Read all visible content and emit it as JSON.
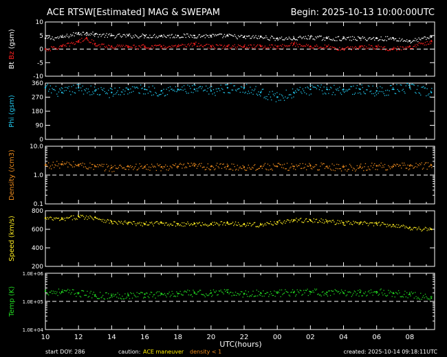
{
  "header": {
    "title": "ACE RTSW[Estimated] MAG & SWEPAM",
    "begin": "Begin: 2025-10-13 10:00:00UTC"
  },
  "footer": {
    "start": "start DOY: 286",
    "caution": "caution:",
    "maneuver": "ACE maneuver",
    "density_note": "density < 1",
    "created": "created: 2025-10-14 09:18:11UTC"
  },
  "colors": {
    "bt": "#ffffff",
    "bz": "#ff2020",
    "phi": "#22c8ee",
    "density": "#ee8c1e",
    "speed": "#ffee22",
    "temp": "#22dd22",
    "axes": "#ffffff",
    "maneuver": "#ffee00",
    "density_note": "#ee8c1e"
  },
  "chart_data": {
    "type": "scatter",
    "xlabel": "UTC(hours)",
    "x_ticks": [
      "10",
      "12",
      "14",
      "16",
      "18",
      "20",
      "22",
      "00",
      "02",
      "04",
      "06",
      "08"
    ],
    "x_range_hours": [
      10,
      33.5
    ],
    "panels": [
      {
        "id": "mag",
        "ylabel_parts": [
          {
            "text": "Bt",
            "series": "bt"
          },
          {
            "text": " Bz",
            "series": "bz"
          },
          {
            "text": " (gsm)",
            "series": "axes"
          }
        ],
        "ylim": [
          -10,
          10
        ],
        "yticks": [
          10,
          5,
          0,
          -5,
          -10
        ],
        "dashed_ref": 0,
        "series": [
          {
            "name": "Bt",
            "x": [
              10,
              11,
              12,
              12.5,
              13,
              14,
              15,
              16,
              17,
              18,
              19,
              20,
              21,
              22,
              23,
              24,
              25,
              26,
              27,
              28,
              29,
              30,
              31,
              32,
              33.3
            ],
            "y": [
              4,
              4.5,
              6,
              6,
              5.5,
              5,
              5,
              5,
              5,
              5,
              5,
              5,
              5,
              4.5,
              4.5,
              4,
              4,
              4.5,
              4,
              4,
              4,
              4,
              4,
              3,
              4.5
            ]
          },
          {
            "name": "Bz",
            "x": [
              10,
              11,
              12,
              12.5,
              13,
              14,
              15,
              16,
              17,
              18,
              19,
              20,
              21,
              22,
              23,
              24,
              25,
              26,
              27,
              28,
              29,
              30,
              31,
              32,
              33.3
            ],
            "y": [
              0,
              1,
              3,
              4,
              2,
              1,
              1,
              1,
              1,
              1,
              2,
              1,
              1,
              1,
              1,
              1,
              2,
              1,
              1,
              0,
              1,
              1,
              0,
              1,
              3
            ]
          }
        ]
      },
      {
        "id": "phi",
        "ylabel": "Phi (gsm)",
        "ylim": [
          0,
          360
        ],
        "yticks": [
          360,
          270,
          180,
          90,
          0
        ],
        "series": [
          {
            "name": "Phi",
            "x": [
              10,
              11,
              12,
              13,
              14,
              15,
              16,
              17,
              18,
              19,
              20,
              21,
              22,
              23,
              24,
              25,
              26,
              27,
              28,
              29,
              30,
              31,
              32,
              33.3
            ],
            "y": [
              330,
              300,
              330,
              310,
              300,
              320,
              320,
              310,
              320,
              320,
              310,
              330,
              330,
              300,
              270,
              300,
              320,
              320,
              320,
              320,
              310,
              320,
              330,
              300
            ]
          }
        ]
      },
      {
        "id": "density",
        "ylabel": "Density (/cm3)",
        "ylim": [
          0.1,
          10
        ],
        "scale": "log",
        "ytick_labels": [
          "10.0",
          "1.0",
          "0.1"
        ],
        "dashed_ref": 1,
        "series": [
          {
            "name": "Density",
            "x": [
              10,
              11,
              12,
              13,
              14,
              15,
              16,
              17,
              18,
              19,
              20,
              21,
              22,
              23,
              24,
              25,
              26,
              27,
              28,
              29,
              30,
              31,
              32,
              33.3
            ],
            "y": [
              2.2,
              2.4,
              2.3,
              2.0,
              1.8,
              2.0,
              1.9,
              1.9,
              2.0,
              2.1,
              2.0,
              2.0,
              1.9,
              2.0,
              2.0,
              2.0,
              2.1,
              2.0,
              1.9,
              1.9,
              2.1,
              2.0,
              2.1,
              2.2
            ]
          }
        ]
      },
      {
        "id": "speed",
        "ylabel": "Speed (km/s)",
        "ylim": [
          200,
          800
        ],
        "yticks": [
          800,
          600,
          400,
          200
        ],
        "series": [
          {
            "name": "Speed",
            "x": [
              10,
              11,
              12,
              13,
              14,
              15,
              16,
              17,
              18,
              19,
              20,
              21,
              22,
              23,
              24,
              25,
              26,
              27,
              28,
              29,
              30,
              31,
              32,
              33.3
            ],
            "y": [
              720,
              710,
              740,
              730,
              680,
              670,
              660,
              670,
              660,
              660,
              660,
              670,
              660,
              650,
              680,
              700,
              700,
              690,
              670,
              670,
              660,
              650,
              620,
              600
            ]
          }
        ]
      },
      {
        "id": "temp",
        "ylabel": "Temp (K)",
        "ylim": [
          10000,
          1000000
        ],
        "scale": "log",
        "ytick_labels": [
          "1.0E+06",
          "1.0E+05",
          "1.0E+04"
        ],
        "dashed_ref": 100000,
        "series": [
          {
            "name": "Temp",
            "x": [
              10,
              11,
              12,
              13,
              14,
              15,
              16,
              17,
              18,
              19,
              20,
              21,
              22,
              23,
              24,
              25,
              26,
              27,
              28,
              29,
              30,
              31,
              32,
              33.3
            ],
            "y": [
              230000,
              220000,
              200000,
              170000,
              160000,
              170000,
              180000,
              180000,
              190000,
              200000,
              200000,
              210000,
              190000,
              200000,
              200000,
              210000,
              220000,
              210000,
              200000,
              210000,
              220000,
              200000,
              180000,
              130000
            ]
          }
        ]
      }
    ]
  }
}
